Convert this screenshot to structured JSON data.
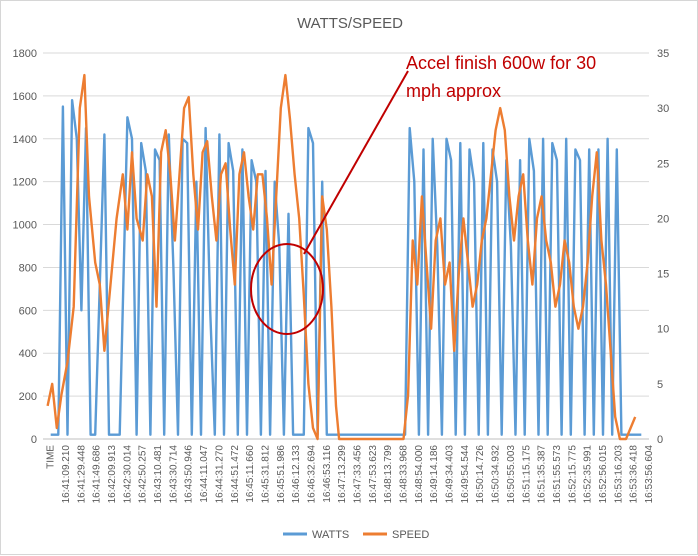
{
  "chart_data": {
    "type": "line",
    "title": "WATTS/SPEED",
    "x_tick_labels": [
      "TIME",
      "16:41:09.210",
      "16:41:29.448",
      "16:41:49.686",
      "16:42:09.913",
      "16:42:30.014",
      "16:42:50.257",
      "16:43:10.481",
      "16:43:30.714",
      "16:43:50.946",
      "16:44:11.047",
      "16:44:31.270",
      "16:44:51.472",
      "16:45:11.660",
      "16:45:31.812",
      "16:45:51.986",
      "16:46:12.133",
      "16:46:32.694",
      "16:46:53.116",
      "16:47:13.299",
      "16:47:33.456",
      "16:47:53.623",
      "16:48:13.799",
      "16:48:33.968",
      "16:48:54.000",
      "16:49:14.186",
      "16:49:34.403",
      "16:49:54.544",
      "16:50:14.726",
      "16:50:34.932",
      "16:50:55.003",
      "16:51:15.175",
      "16:51:35.387",
      "16:51:55.573",
      "16:52:15.775",
      "16:52:35.991",
      "16:52:56.015",
      "16:53:16.203",
      "16:53:36.418",
      "16:53:56.604"
    ],
    "y_left": {
      "min": 0,
      "max": 1800,
      "ticks": [
        0,
        200,
        400,
        600,
        800,
        1000,
        1200,
        1400,
        1600,
        1800
      ]
    },
    "y_right": {
      "min": 0,
      "max": 35,
      "ticks": [
        0,
        5,
        10,
        15,
        20,
        25,
        30,
        35
      ]
    },
    "legend_position": "bottom",
    "gridlines": true,
    "series": [
      {
        "name": "WATTS",
        "color": "#5b9bd5",
        "axis": "left",
        "points": [
          [
            0.5,
            20
          ],
          [
            1.0,
            20
          ],
          [
            1.3,
            1550
          ],
          [
            1.6,
            20
          ],
          [
            1.9,
            1580
          ],
          [
            2.2,
            1400
          ],
          [
            2.5,
            600
          ],
          [
            2.8,
            1450
          ],
          [
            3.1,
            20
          ],
          [
            3.4,
            20
          ],
          [
            4.0,
            1420
          ],
          [
            4.3,
            20
          ],
          [
            5.0,
            20
          ],
          [
            5.5,
            1500
          ],
          [
            5.8,
            1400
          ],
          [
            6.1,
            20
          ],
          [
            6.4,
            1380
          ],
          [
            6.7,
            1250
          ],
          [
            7.0,
            20
          ],
          [
            7.3,
            1350
          ],
          [
            7.6,
            1300
          ],
          [
            7.9,
            20
          ],
          [
            8.2,
            1420
          ],
          [
            8.5,
            800
          ],
          [
            8.8,
            20
          ],
          [
            9.1,
            1400
          ],
          [
            9.4,
            1380
          ],
          [
            9.7,
            20
          ],
          [
            10.0,
            1200
          ],
          [
            10.3,
            20
          ],
          [
            10.6,
            1450
          ],
          [
            10.9,
            600
          ],
          [
            11.2,
            20
          ],
          [
            11.5,
            1420
          ],
          [
            11.8,
            20
          ],
          [
            12.1,
            1380
          ],
          [
            12.4,
            1250
          ],
          [
            12.7,
            20
          ],
          [
            13.0,
            1350
          ],
          [
            13.3,
            20
          ],
          [
            13.6,
            1300
          ],
          [
            13.9,
            1200
          ],
          [
            14.2,
            20
          ],
          [
            14.5,
            1250
          ],
          [
            14.8,
            20
          ],
          [
            15.1,
            1200
          ],
          [
            15.4,
            900
          ],
          [
            15.7,
            20
          ],
          [
            16.0,
            1050
          ],
          [
            16.3,
            20
          ],
          [
            16.6,
            20
          ],
          [
            17.0,
            20
          ],
          [
            17.3,
            1450
          ],
          [
            17.6,
            1380
          ],
          [
            17.9,
            20
          ],
          [
            18.2,
            1200
          ],
          [
            18.5,
            20
          ],
          [
            18.8,
            20
          ],
          [
            19.0,
            20
          ],
          [
            20.0,
            20
          ],
          [
            21.0,
            20
          ],
          [
            22.0,
            20
          ],
          [
            23.0,
            20
          ],
          [
            23.6,
            20
          ],
          [
            23.9,
            1450
          ],
          [
            24.2,
            1200
          ],
          [
            24.5,
            20
          ],
          [
            24.8,
            1350
          ],
          [
            25.1,
            20
          ],
          [
            25.4,
            1400
          ],
          [
            25.7,
            900
          ],
          [
            26.0,
            20
          ],
          [
            26.3,
            1400
          ],
          [
            26.6,
            1300
          ],
          [
            26.9,
            20
          ],
          [
            27.2,
            1380
          ],
          [
            27.5,
            20
          ],
          [
            27.8,
            1350
          ],
          [
            28.1,
            1200
          ],
          [
            28.4,
            20
          ],
          [
            28.7,
            1380
          ],
          [
            29.0,
            20
          ],
          [
            29.3,
            1350
          ],
          [
            29.6,
            1200
          ],
          [
            29.9,
            20
          ],
          [
            30.2,
            1300
          ],
          [
            30.5,
            900
          ],
          [
            30.8,
            20
          ],
          [
            31.1,
            1300
          ],
          [
            31.4,
            20
          ],
          [
            31.7,
            1400
          ],
          [
            32.0,
            1250
          ],
          [
            32.3,
            20
          ],
          [
            32.6,
            1400
          ],
          [
            32.9,
            20
          ],
          [
            33.2,
            1380
          ],
          [
            33.5,
            1300
          ],
          [
            33.8,
            20
          ],
          [
            34.1,
            1400
          ],
          [
            34.4,
            20
          ],
          [
            34.7,
            1350
          ],
          [
            35.0,
            1300
          ],
          [
            35.3,
            20
          ],
          [
            35.6,
            1350
          ],
          [
            35.9,
            20
          ],
          [
            36.2,
            1350
          ],
          [
            36.5,
            20
          ],
          [
            36.8,
            1400
          ],
          [
            37.1,
            20
          ],
          [
            37.4,
            1350
          ],
          [
            37.7,
            20
          ],
          [
            38.0,
            20
          ],
          [
            38.5,
            20
          ],
          [
            39.0,
            20
          ]
        ]
      },
      {
        "name": "SPEED",
        "color": "#ed7d31",
        "axis": "right",
        "points": [
          [
            0.3,
            3
          ],
          [
            0.6,
            5
          ],
          [
            0.9,
            1
          ],
          [
            1.2,
            4
          ],
          [
            1.6,
            7
          ],
          [
            2.0,
            12
          ],
          [
            2.4,
            30
          ],
          [
            2.7,
            33
          ],
          [
            3.0,
            22
          ],
          [
            3.4,
            16
          ],
          [
            3.7,
            14
          ],
          [
            4.0,
            8
          ],
          [
            4.4,
            14
          ],
          [
            4.8,
            20
          ],
          [
            5.2,
            24
          ],
          [
            5.5,
            19
          ],
          [
            5.8,
            26
          ],
          [
            6.1,
            20
          ],
          [
            6.5,
            18
          ],
          [
            6.8,
            24
          ],
          [
            7.1,
            22
          ],
          [
            7.4,
            12
          ],
          [
            7.7,
            26
          ],
          [
            8.0,
            28
          ],
          [
            8.3,
            24
          ],
          [
            8.6,
            18
          ],
          [
            8.9,
            24
          ],
          [
            9.2,
            30
          ],
          [
            9.5,
            31
          ],
          [
            9.8,
            24
          ],
          [
            10.1,
            19
          ],
          [
            10.4,
            26
          ],
          [
            10.7,
            27
          ],
          [
            11.0,
            22
          ],
          [
            11.3,
            18
          ],
          [
            11.6,
            24
          ],
          [
            11.9,
            25
          ],
          [
            12.2,
            19
          ],
          [
            12.5,
            14
          ],
          [
            12.8,
            24
          ],
          [
            13.1,
            26
          ],
          [
            13.4,
            22
          ],
          [
            13.7,
            19
          ],
          [
            14.0,
            24
          ],
          [
            14.3,
            24
          ],
          [
            14.6,
            20
          ],
          [
            14.9,
            14
          ],
          [
            15.2,
            22
          ],
          [
            15.5,
            30
          ],
          [
            15.8,
            33
          ],
          [
            16.1,
            29
          ],
          [
            16.4,
            24
          ],
          [
            16.7,
            20
          ],
          [
            17.0,
            13
          ],
          [
            17.3,
            5
          ],
          [
            17.6,
            1
          ],
          [
            17.9,
            0
          ],
          [
            18.2,
            22
          ],
          [
            18.5,
            19
          ],
          [
            18.8,
            12
          ],
          [
            19.1,
            3
          ],
          [
            19.3,
            0
          ],
          [
            19.6,
            0
          ],
          [
            20.0,
            0
          ],
          [
            21.0,
            0
          ],
          [
            22.0,
            0
          ],
          [
            23.0,
            0
          ],
          [
            23.5,
            0
          ],
          [
            23.8,
            4
          ],
          [
            24.1,
            18
          ],
          [
            24.4,
            14
          ],
          [
            24.7,
            22
          ],
          [
            25.0,
            16
          ],
          [
            25.3,
            10
          ],
          [
            25.6,
            18
          ],
          [
            25.9,
            20
          ],
          [
            26.2,
            14
          ],
          [
            26.5,
            16
          ],
          [
            26.8,
            8
          ],
          [
            27.1,
            15
          ],
          [
            27.4,
            20
          ],
          [
            27.7,
            16
          ],
          [
            28.0,
            12
          ],
          [
            28.3,
            14
          ],
          [
            28.6,
            18
          ],
          [
            28.9,
            20
          ],
          [
            29.2,
            24
          ],
          [
            29.5,
            28
          ],
          [
            29.8,
            30
          ],
          [
            30.1,
            28
          ],
          [
            30.4,
            22
          ],
          [
            30.7,
            18
          ],
          [
            31.0,
            22
          ],
          [
            31.3,
            24
          ],
          [
            31.6,
            18
          ],
          [
            31.9,
            14
          ],
          [
            32.2,
            20
          ],
          [
            32.5,
            22
          ],
          [
            32.8,
            18
          ],
          [
            33.1,
            16
          ],
          [
            33.4,
            12
          ],
          [
            33.7,
            14
          ],
          [
            34.0,
            18
          ],
          [
            34.3,
            16
          ],
          [
            34.6,
            12
          ],
          [
            34.9,
            10
          ],
          [
            35.2,
            12
          ],
          [
            35.5,
            16
          ],
          [
            35.8,
            22
          ],
          [
            36.1,
            26
          ],
          [
            36.4,
            18
          ],
          [
            36.7,
            14
          ],
          [
            37.0,
            8
          ],
          [
            37.3,
            2
          ],
          [
            37.6,
            0
          ],
          [
            38.0,
            0
          ],
          [
            38.3,
            1
          ],
          [
            38.6,
            2
          ]
        ]
      }
    ],
    "annotations": [
      {
        "text_lines": [
          "Accel finish 600w for 30",
          "mph approx"
        ],
        "color": "#c00000"
      }
    ]
  }
}
